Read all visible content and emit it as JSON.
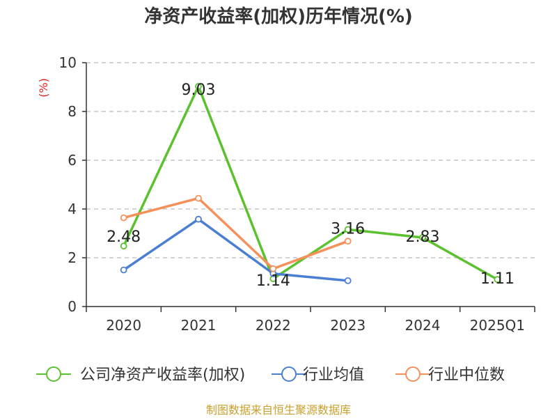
{
  "chart_data": {
    "type": "line",
    "title": "净资产收益率(加权)历年情况(%)",
    "ylabel": "(%)",
    "xlabel": "",
    "ylim": [
      0,
      10
    ],
    "yticks": [
      0,
      2,
      4,
      6,
      8,
      10
    ],
    "grid": true,
    "legend_position": "bottom",
    "categories": [
      "2020",
      "2021",
      "2022",
      "2023",
      "2024",
      "2025Q1"
    ],
    "series": [
      {
        "name": "公司净资产收益率(加权)",
        "color": "#5cc12e",
        "values": [
          2.48,
          9.03,
          1.14,
          3.16,
          2.83,
          1.11
        ],
        "labels": [
          "2.48",
          "9.03",
          "1.14",
          "3.16",
          "2.83",
          "1.11"
        ]
      },
      {
        "name": "行业均值",
        "color": "#4a7fd4",
        "values": [
          1.5,
          3.58,
          1.35,
          1.06,
          null,
          null
        ]
      },
      {
        "name": "行业中位数",
        "color": "#f5905a",
        "values": [
          3.64,
          4.44,
          1.55,
          2.68,
          null,
          null
        ]
      }
    ],
    "source": "制图数据来自恒生聚源数据库"
  }
}
